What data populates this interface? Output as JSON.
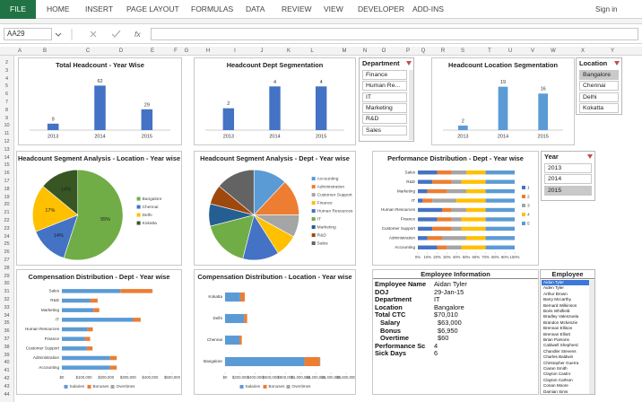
{
  "ribbon": {
    "file": "FILE",
    "tabs": [
      "HOME",
      "INSERT",
      "PAGE LAYOUT",
      "FORMULAS",
      "DATA",
      "REVIEW",
      "VIEW",
      "DEVELOPER",
      "ADD-INS"
    ],
    "sign_in": "Sign in"
  },
  "formula_bar": {
    "name_box": "AA29",
    "fx": "fx"
  },
  "columns": [
    "A",
    "B",
    "C",
    "D",
    "E",
    "F",
    "G",
    "H",
    "I",
    "J",
    "K",
    "L",
    "M",
    "N",
    "O",
    "P",
    "Q",
    "R",
    "S",
    "T",
    "U",
    "V",
    "W",
    "X",
    "Y"
  ],
  "rows": [
    2,
    3,
    4,
    5,
    6,
    7,
    8,
    9,
    10,
    11,
    12,
    13,
    14,
    15,
    16,
    17,
    18,
    19,
    20,
    21,
    22,
    23,
    24,
    25,
    26,
    27,
    28,
    29,
    30,
    31,
    32,
    33,
    34,
    35,
    36,
    37,
    38,
    39,
    40,
    41,
    42,
    43,
    44
  ],
  "chart_data": [
    {
      "type": "bar",
      "title": "Total Headcount - Year Wise",
      "categories": [
        "2013",
        "2014",
        "2015"
      ],
      "values": [
        9,
        62,
        29
      ],
      "color": "#4472c4",
      "ylim": [
        0,
        70
      ]
    },
    {
      "type": "bar",
      "title": "Headcount Dept Segmentation",
      "categories": [
        "2013",
        "2014",
        "2015"
      ],
      "values": [
        2,
        4,
        4
      ],
      "color": "#4472c4",
      "ylim": [
        0,
        4.6
      ]
    },
    {
      "type": "bar",
      "title": "Headcount Location Segmentation",
      "categories": [
        "2013",
        "2014",
        "2015"
      ],
      "values": [
        2,
        19,
        16
      ],
      "color": "#5b9bd5",
      "ylim": [
        0,
        22
      ]
    },
    {
      "type": "pie",
      "title": "Headcount Segment Analysis - Location - Year wise",
      "categories": [
        "Bangalore",
        "Chennai",
        "Delhi",
        "Kokatta"
      ],
      "values": [
        55,
        14,
        17,
        14
      ],
      "value_labels": [
        "55%",
        "14%",
        "17%",
        "14%"
      ],
      "colors": [
        "#70ad47",
        "#4472c4",
        "#ffc000",
        "#375623"
      ]
    },
    {
      "type": "pie",
      "title": "Headcount Segment Analysis - Dept - Year wise",
      "categories": [
        "Accounting",
        "Administration",
        "Customer Support",
        "Finance",
        "Human Resources",
        "IT",
        "Marketing",
        "R&D",
        "Sales"
      ],
      "values": [
        12,
        13,
        8,
        8,
        13,
        17,
        8,
        7,
        14
      ],
      "colors": [
        "#5b9bd5",
        "#ed7d31",
        "#a5a5a5",
        "#ffc000",
        "#4472c4",
        "#70ad47",
        "#255e91",
        "#9e480e",
        "#636363"
      ]
    },
    {
      "type": "hbar",
      "title": "Performance Distribution - Dept - Year wise",
      "legend": "right",
      "categories": [
        "Sales",
        "R&D",
        "Marketing",
        "IT",
        "Human Resources",
        "Finance",
        "Customer Support",
        "Administration",
        "Accounting"
      ],
      "series": [
        {
          "name": "1",
          "color": "#4472c4",
          "values": [
            20,
            15,
            10,
            5,
            25,
            20,
            15,
            10,
            20
          ]
        },
        {
          "name": "2",
          "color": "#ed7d31",
          "values": [
            15,
            20,
            20,
            10,
            10,
            15,
            20,
            15,
            10
          ]
        },
        {
          "name": "3",
          "color": "#a5a5a5",
          "values": [
            15,
            10,
            20,
            25,
            15,
            10,
            10,
            25,
            15
          ]
        },
        {
          "name": "4",
          "color": "#ffc000",
          "values": [
            20,
            25,
            20,
            30,
            20,
            25,
            25,
            20,
            25
          ]
        },
        {
          "name": "5",
          "color": "#5b9bd5",
          "values": [
            30,
            30,
            30,
            30,
            30,
            30,
            30,
            30,
            30
          ]
        }
      ],
      "xlim": [
        0,
        100
      ],
      "xticks": [
        {
          "value": 0,
          "label": "0%"
        },
        {
          "value": 10,
          "label": "10%"
        },
        {
          "value": 20,
          "label": "20%"
        },
        {
          "value": 30,
          "label": "30%"
        },
        {
          "value": 40,
          "label": "40%"
        },
        {
          "value": 50,
          "label": "50%"
        },
        {
          "value": 60,
          "label": "60%"
        },
        {
          "value": 70,
          "label": "70%"
        },
        {
          "value": 80,
          "label": "80%"
        },
        {
          "value": 90,
          "label": "90%"
        },
        {
          "value": 100,
          "label": "100%"
        }
      ]
    },
    {
      "type": "hbar",
      "title": "Compensation Distribution - Dept - Year wise",
      "legend": "bottom",
      "categories": [
        "Sales",
        "R&D",
        "Marketing",
        "IT",
        "Human Resources",
        "Finance",
        "Customer Support",
        "Administration",
        "Accounting"
      ],
      "series": [
        {
          "name": "Salaries",
          "color": "#5b9bd5",
          "values": [
            265000,
            128000,
            143000,
            323000,
            117000,
            105000,
            113000,
            218000,
            218000
          ]
        },
        {
          "name": "Bonuses",
          "color": "#ed7d31",
          "values": [
            145000,
            34000,
            26000,
            34000,
            23000,
            23000,
            26000,
            30000,
            30000
          ]
        },
        {
          "name": "Overtimes",
          "color": "#a5a5a5",
          "values": [
            1500,
            800,
            700,
            1200,
            600,
            500,
            600,
            900,
            900
          ]
        }
      ],
      "xlim": [
        0,
        500000
      ],
      "xticks": [
        {
          "value": 0,
          "label": "$0"
        },
        {
          "value": 100000,
          "label": "$100,000"
        },
        {
          "value": 200000,
          "label": "$200,000"
        },
        {
          "value": 300000,
          "label": "$300,000"
        },
        {
          "value": 400000,
          "label": "$400,000"
        },
        {
          "value": 500000,
          "label": "$500,000"
        }
      ]
    },
    {
      "type": "hbar",
      "title": "Compensation Distribution - Location - Year wise",
      "legend": "bottom",
      "categories": [
        "Kokatta",
        "Delhi",
        "Chennai",
        "Bangalore"
      ],
      "series": [
        {
          "name": "Salaries",
          "color": "#5b9bd5",
          "values": [
            200000,
            250000,
            190000,
            1050000
          ]
        },
        {
          "name": "Bonuses",
          "color": "#ed7d31",
          "values": [
            60000,
            40000,
            30000,
            200000
          ]
        },
        {
          "name": "Overtimes",
          "color": "#a5a5a5",
          "values": [
            2000,
            2500,
            1800,
            9000
          ]
        }
      ],
      "xlim": [
        0,
        1600000
      ],
      "xticks": [
        {
          "value": 0,
          "label": "$0"
        },
        {
          "value": 200000,
          "label": "$200,000"
        },
        {
          "value": 400000,
          "label": "$400,000"
        },
        {
          "value": 600000,
          "label": "$600,000"
        },
        {
          "value": 800000,
          "label": "$800,000"
        },
        {
          "value": 1000000,
          "label": "$1,000,000"
        },
        {
          "value": 1200000,
          "label": "$1,200,000"
        },
        {
          "value": 1400000,
          "label": "$1,400,000"
        },
        {
          "value": 1600000,
          "label": "$1,600,000"
        }
      ]
    }
  ],
  "slicers": [
    {
      "title": "Department",
      "items": [
        "Finance",
        "Human Re...",
        "IT",
        "Marketing",
        "R&D",
        "Sales"
      ]
    },
    {
      "title": "Location",
      "items": [
        "Bangalore",
        "Chennai",
        "Delhi",
        "Kokatta"
      ],
      "selected": 0
    },
    {
      "title": "Year",
      "items": [
        "2013",
        "2014",
        "2015"
      ],
      "selected": 2
    }
  ],
  "employee_info": {
    "title": "Employee Information",
    "rows": [
      [
        "Employee Name",
        "Aidan Tyler"
      ],
      [
        "DOJ",
        "29-Jan-15"
      ],
      [
        "Department",
        "IT"
      ],
      [
        "Location",
        "Bangalore"
      ],
      [
        "Total CTC",
        "$70,010"
      ],
      [
        "Salary",
        "$63,000"
      ],
      [
        "Bonus",
        "$6,950"
      ],
      [
        "Overtime",
        "$60"
      ],
      [
        "Performance Sc",
        "4"
      ],
      [
        "Sick Days",
        "6"
      ]
    ]
  },
  "employee_list": {
    "title": "Employee",
    "selected": 0,
    "names": [
      "Aidan Tyler",
      "Aiden Tyler",
      "Arthur Brown",
      "Barry Mccarthy",
      "Bernard Wilkinson",
      "Boris Whitfield",
      "Bradley Valenzuela",
      "Brandon Mckenzie",
      "Brennan Ellison",
      "Brennan Elliott",
      "Brian Parsons",
      "Caldwell Shepherd",
      "Chandler Stevens",
      "Charles Baldwin",
      "Christopher Guerra",
      "Ciaran Smith",
      "Clayton Castro",
      "Clayton Carlson",
      "Conan Moore",
      "Damian Sims"
    ]
  }
}
